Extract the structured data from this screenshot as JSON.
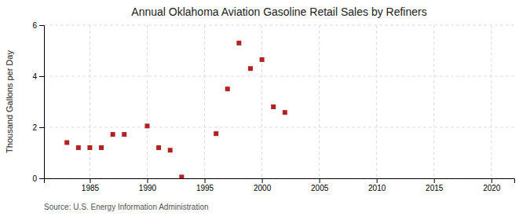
{
  "chart_data": {
    "type": "scatter",
    "title": "Annual Oklahoma Aviation Gasoline Retail Sales by Refiners",
    "ylabel": "Thousand Gallons per Day",
    "annotations": [
      "Source: U.S. Energy Information Administration"
    ],
    "x": [
      1983,
      1984,
      1985,
      1986,
      1987,
      1988,
      1990,
      1991,
      1992,
      1993,
      1996,
      1997,
      1998,
      1999,
      2000,
      2001,
      2002
    ],
    "values": [
      1.4,
      1.2,
      1.2,
      1.2,
      1.72,
      1.72,
      2.05,
      1.2,
      1.1,
      0.05,
      1.75,
      3.5,
      5.3,
      4.3,
      4.65,
      2.8,
      2.58
    ],
    "color": "#b22222",
    "marker": "square",
    "xlim": [
      1981,
      2022
    ],
    "ylim": [
      0,
      6
    ],
    "xticks": [
      1985,
      1990,
      1995,
      2000,
      2005,
      2010,
      2015,
      2020
    ],
    "yticks": [
      0,
      2,
      4,
      6
    ],
    "grid": true
  }
}
